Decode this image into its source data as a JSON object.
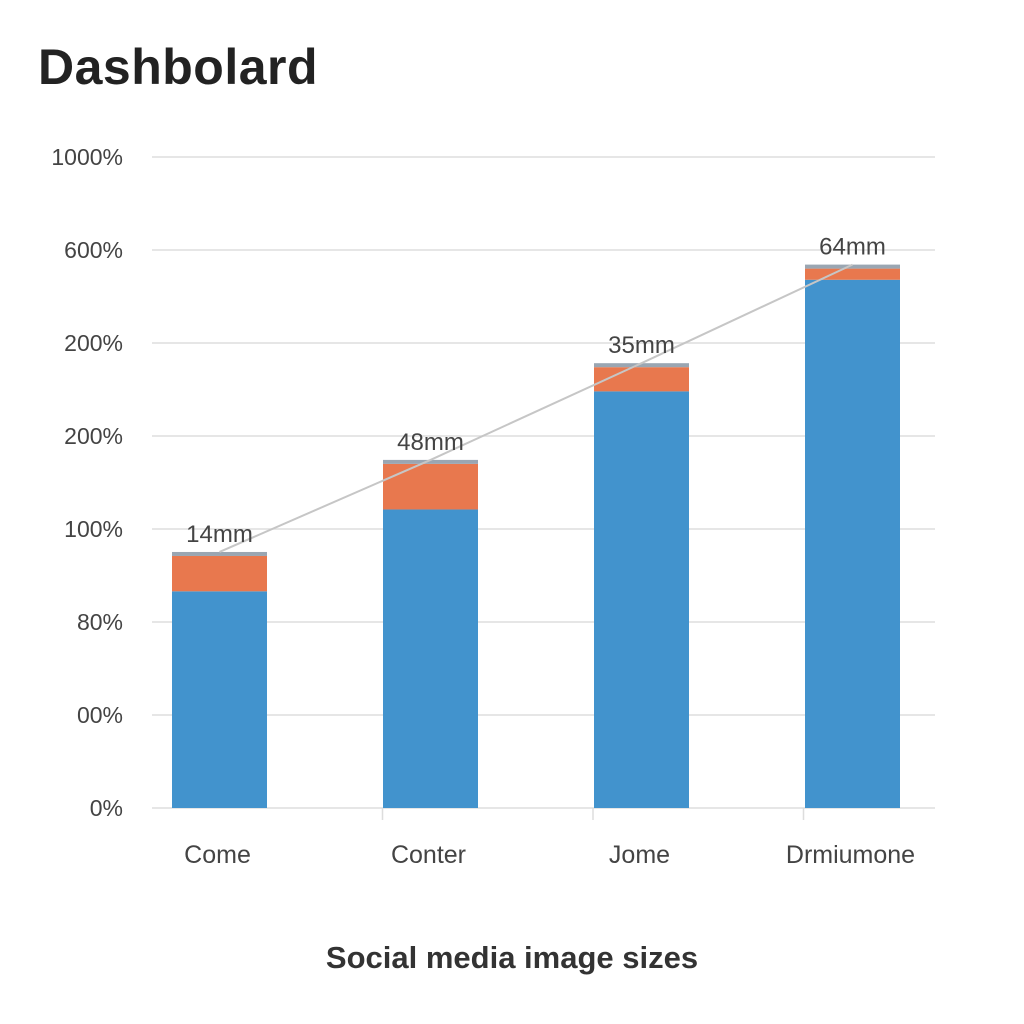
{
  "page": {
    "title": "Dashbolard"
  },
  "colors": {
    "primary_series": "#4293cd",
    "secondary_series": "#e8784e",
    "cap": "#9aa6b2",
    "trend_line": "#c6c6c6",
    "gridline": "#dddddd"
  },
  "chart_data": {
    "type": "bar",
    "stacked": true,
    "title": "",
    "xlabel": "Social media image sizes",
    "ylabel": "",
    "y_tick_labels": [
      "0%",
      "00%",
      "80%",
      "100%",
      "200%",
      "200%",
      "600%",
      "1000%"
    ],
    "categories": [
      "Come",
      "Conter",
      "Jome",
      "Drmiumone"
    ],
    "data_labels": [
      "14mm",
      "48mm",
      "35mm",
      "64mm"
    ],
    "series": [
      {
        "color": "#4293cd",
        "values": [
          2.33,
          3.21,
          4.48,
          5.68
        ]
      },
      {
        "color": "#e8784e",
        "values": [
          0.38,
          0.49,
          0.26,
          0.12
        ]
      }
    ],
    "trend_line": true,
    "grid": true,
    "legend": "none"
  }
}
